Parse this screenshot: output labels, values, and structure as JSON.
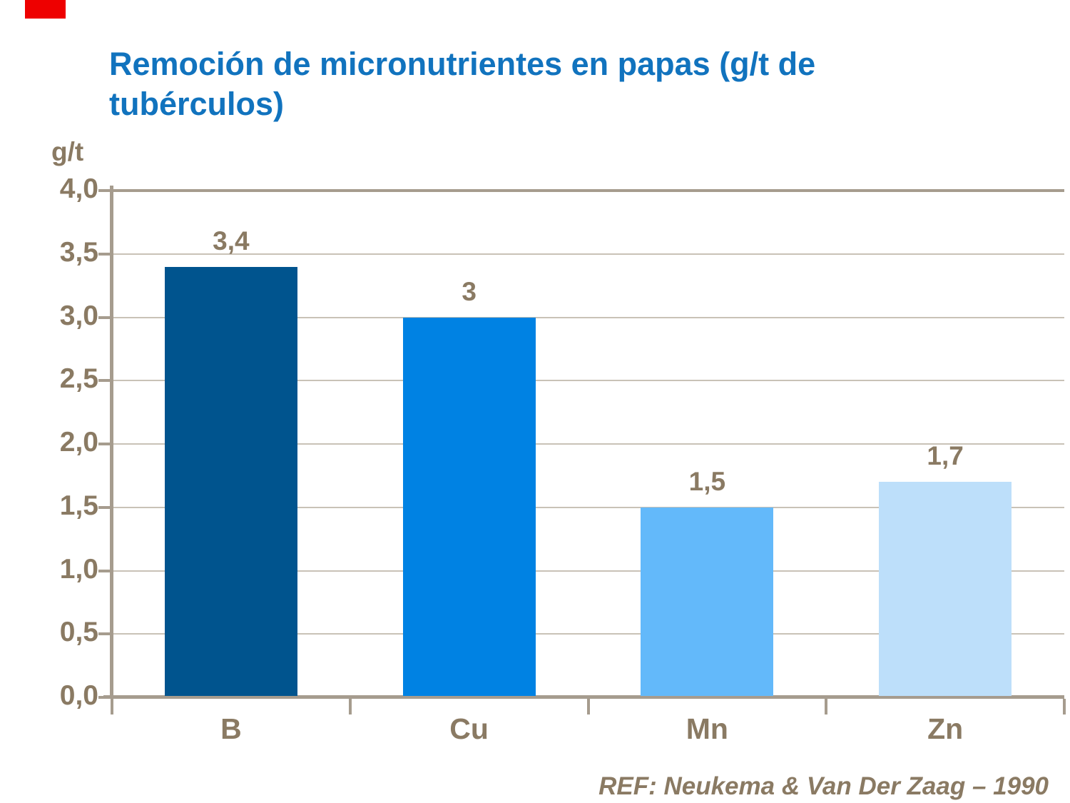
{
  "slide": {
    "title_lines": [
      "Remoción de micronutrientes en papas (g/t de",
      "tubérculos)"
    ],
    "y_axis_title": "g/t",
    "reference": "REF: Neukema & Van Der Zaag – 1990",
    "colors": {
      "title_blue": "#1173be",
      "text_brown": "#8a7a63",
      "axis_line": "#a69c8e",
      "gridline": "#c9c2b7",
      "red_mark": "#ee0000",
      "background": "#ffffff"
    }
  },
  "chart_data": {
    "type": "bar",
    "title": "Remoción de micronutrientes en papas (g/t de tubérculos)",
    "xlabel": "",
    "ylabel": "g/t",
    "categories": [
      "B",
      "Cu",
      "Mn",
      "Zn"
    ],
    "values": [
      3.4,
      3,
      1.5,
      1.7
    ],
    "value_labels": [
      "3,4",
      "3",
      "1,5",
      "1,7"
    ],
    "bar_colors": [
      "#00548e",
      "#0082e3",
      "#63b9fa",
      "#bddffa"
    ],
    "ylim": [
      0,
      4
    ],
    "ytick_step": 0.5,
    "ytick_labels": [
      "0,0",
      "0,5",
      "1,0",
      "1,5",
      "2,0",
      "2,5",
      "3,0",
      "3,5",
      "4,0"
    ],
    "grid": true,
    "legend": false,
    "source": "REF: Neukema & Van Der Zaag – 1990"
  }
}
